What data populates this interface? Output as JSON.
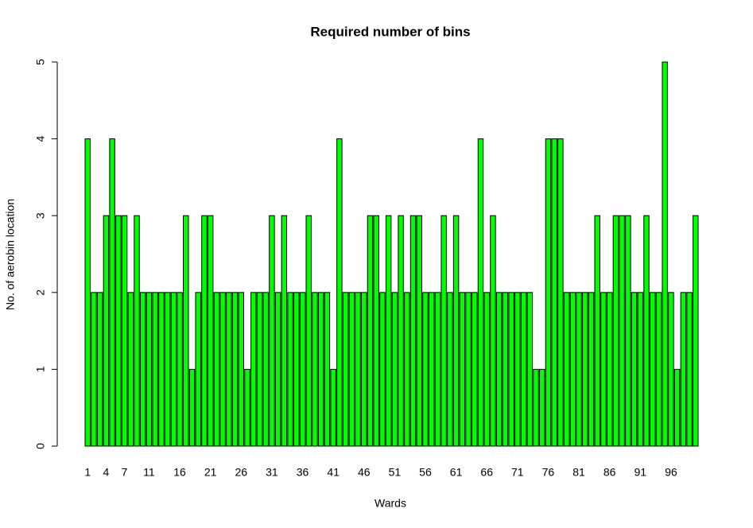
{
  "chart_data": {
    "type": "bar",
    "title": "Required number of bins",
    "xlabel": "Wards",
    "ylabel": "No. of aerobin location",
    "categories": [
      "1",
      null,
      null,
      "4",
      null,
      null,
      "7",
      null,
      null,
      null,
      "11",
      null,
      null,
      null,
      null,
      "16",
      null,
      null,
      null,
      null,
      "21",
      null,
      null,
      null,
      null,
      "26",
      null,
      null,
      null,
      null,
      "31",
      null,
      null,
      null,
      null,
      "36",
      null,
      null,
      null,
      null,
      "41",
      null,
      null,
      null,
      null,
      "46",
      null,
      null,
      null,
      null,
      "51",
      null,
      null,
      null,
      null,
      "56",
      null,
      null,
      null,
      null,
      "61",
      null,
      null,
      null,
      null,
      "66",
      null,
      null,
      null,
      null,
      "71",
      null,
      null,
      null,
      null,
      "76",
      null,
      null,
      null,
      null,
      "81",
      null,
      null,
      null,
      null,
      "86",
      null,
      null,
      null,
      null,
      "91",
      null,
      null,
      null,
      null,
      "96",
      null,
      null,
      null,
      null
    ],
    "values": [
      4,
      2,
      2,
      3,
      4,
      3,
      3,
      2,
      3,
      2,
      2,
      2,
      2,
      2,
      2,
      2,
      3,
      1,
      2,
      3,
      3,
      2,
      2,
      2,
      2,
      2,
      1,
      2,
      2,
      2,
      3,
      2,
      3,
      2,
      2,
      2,
      3,
      2,
      2,
      2,
      1,
      4,
      2,
      2,
      2,
      2,
      3,
      3,
      2,
      3,
      2,
      3,
      2,
      3,
      3,
      2,
      2,
      2,
      3,
      2,
      3,
      2,
      2,
      2,
      4,
      2,
      3,
      2,
      2,
      2,
      2,
      2,
      2,
      1,
      1,
      4,
      4,
      4,
      2,
      2,
      2,
      2,
      2,
      3,
      2,
      2,
      3,
      3,
      3,
      2,
      2,
      3,
      2,
      2,
      5,
      2,
      1,
      2,
      2,
      3
    ],
    "color": "#00ff00",
    "ylim": [
      0,
      5
    ],
    "yticks": [
      0,
      1,
      2,
      3,
      4,
      5
    ],
    "grid": false
  }
}
